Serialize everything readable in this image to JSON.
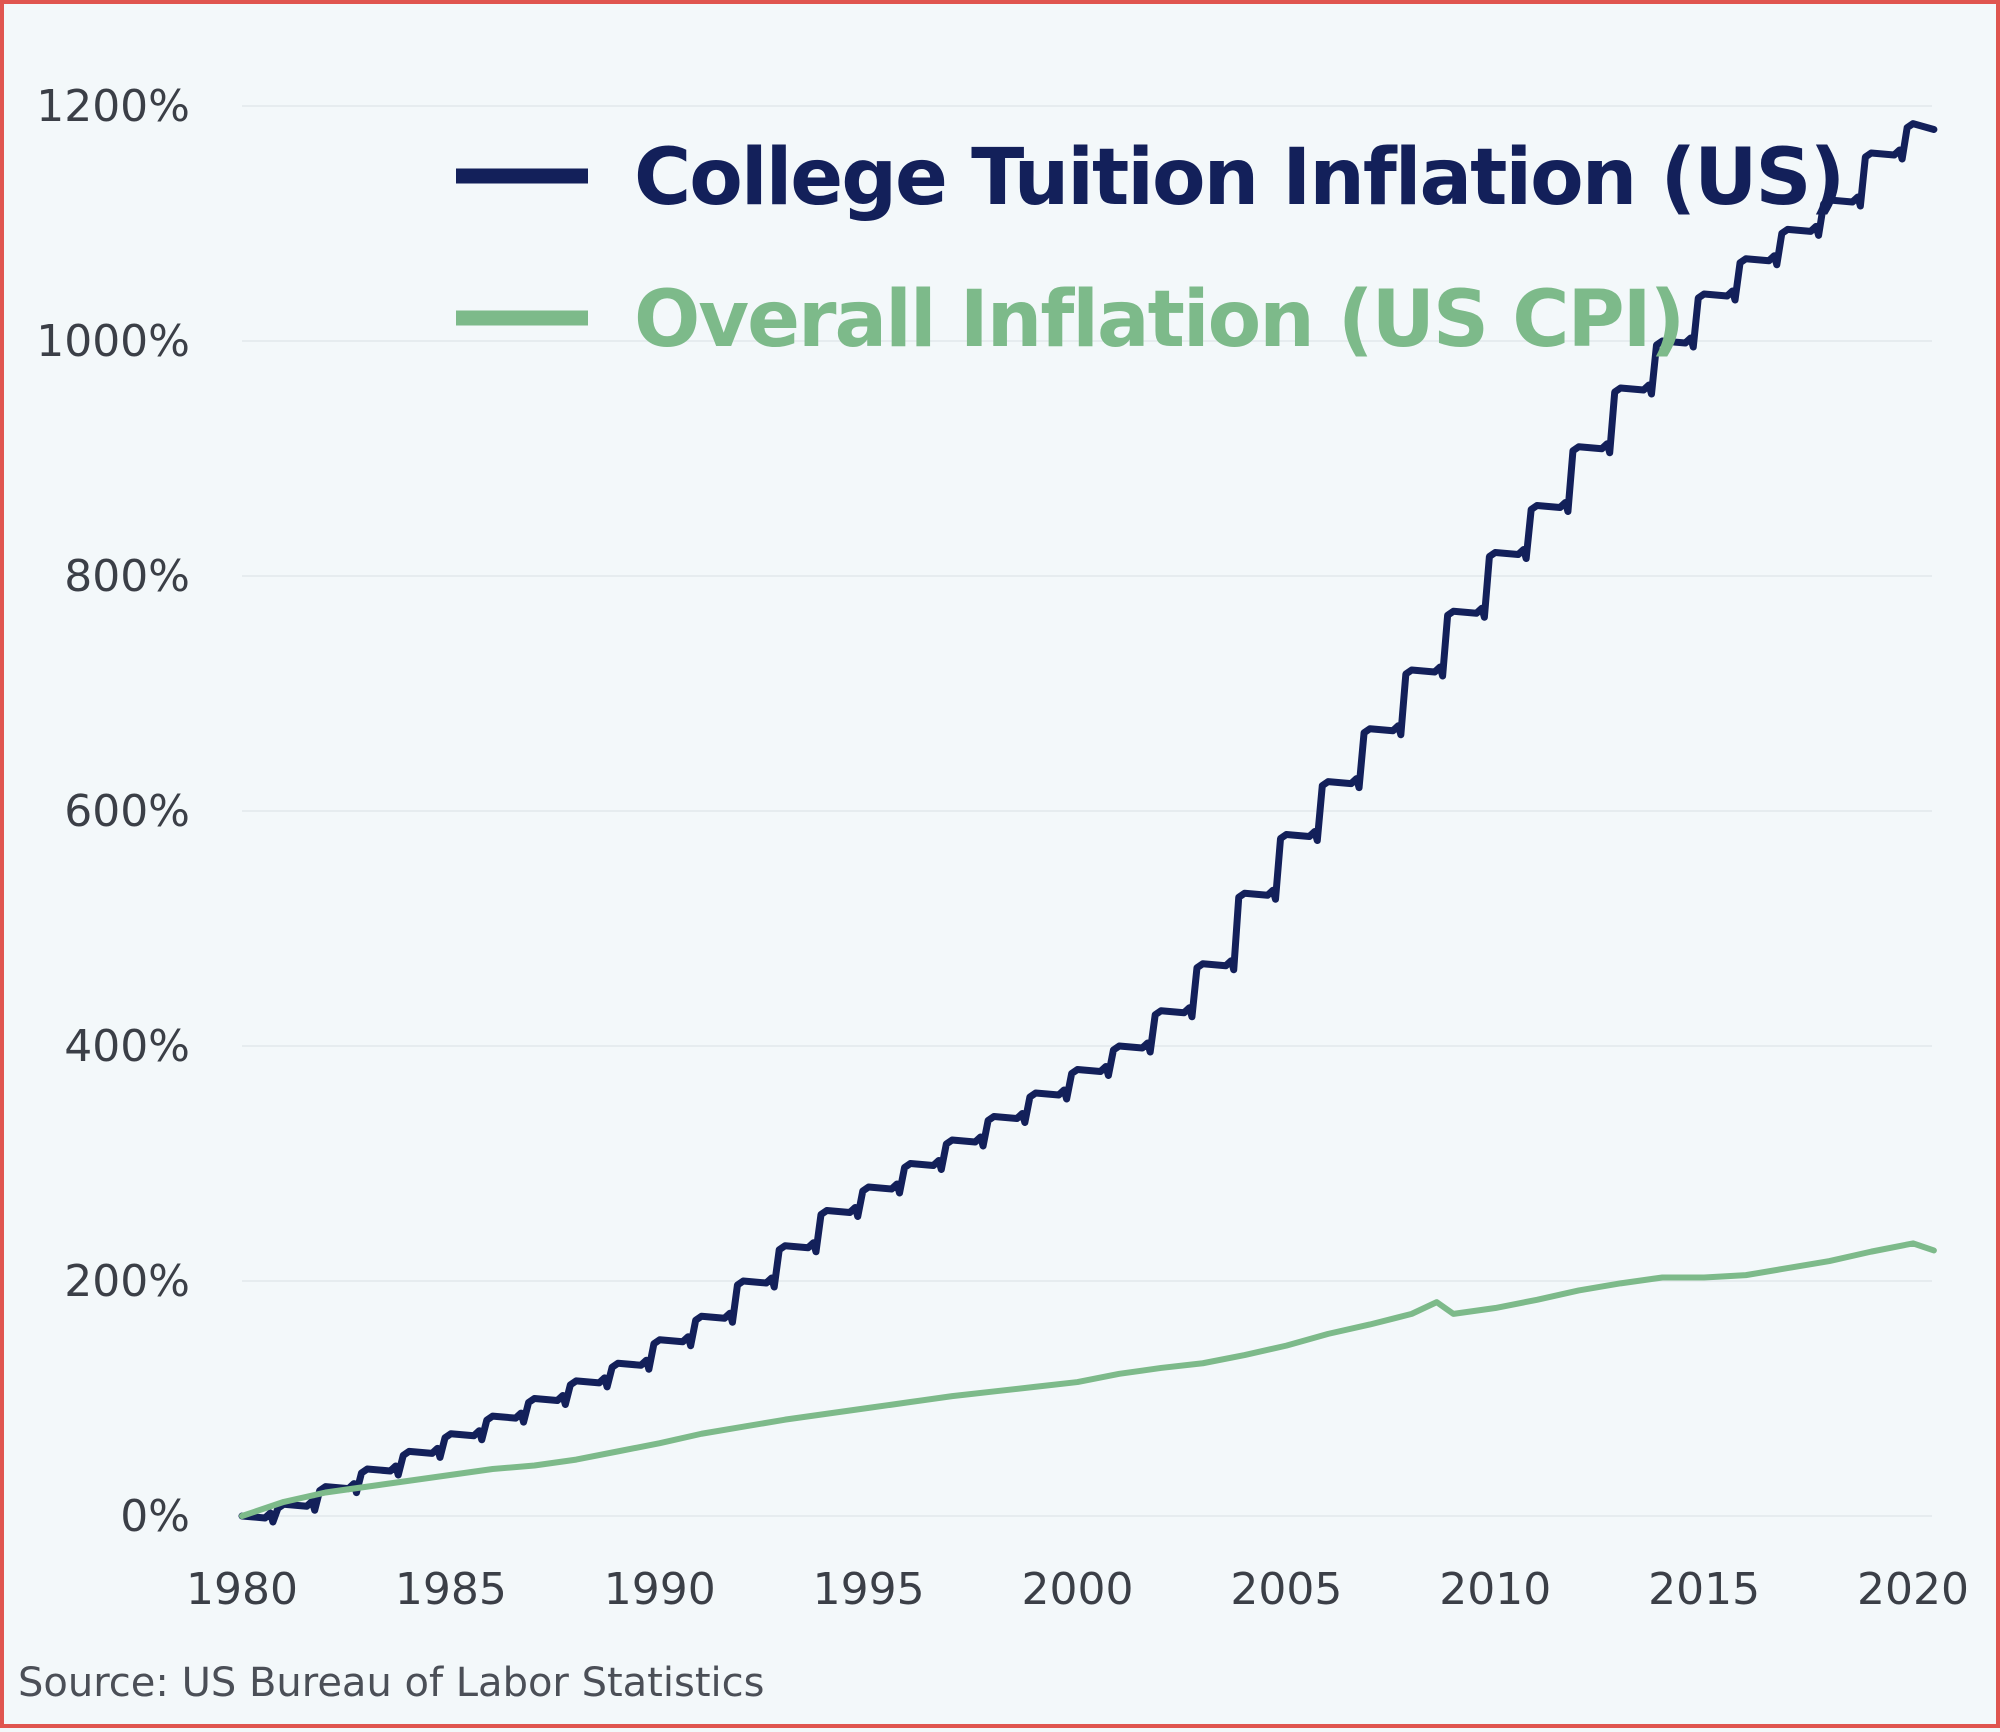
{
  "chart_data": {
    "type": "line",
    "title": "",
    "xlabel": "",
    "ylabel": "",
    "xlim": [
      1980,
      2021
    ],
    "ylim": [
      0,
      1200
    ],
    "grid": true,
    "x_ticks": [
      {
        "value": 1980,
        "label": "1980"
      },
      {
        "value": 1985,
        "label": "1985"
      },
      {
        "value": 1990,
        "label": "1990"
      },
      {
        "value": 1995,
        "label": "1995"
      },
      {
        "value": 2000,
        "label": "2000"
      },
      {
        "value": 2005,
        "label": "2005"
      },
      {
        "value": 2010,
        "label": "2010"
      },
      {
        "value": 2015,
        "label": "2015"
      },
      {
        "value": 2020,
        "label": "2020"
      }
    ],
    "y_ticks": [
      {
        "value": 0,
        "label": "0%"
      },
      {
        "value": 200,
        "label": "200%"
      },
      {
        "value": 400,
        "label": "400%"
      },
      {
        "value": 600,
        "label": "600%"
      },
      {
        "value": 800,
        "label": "800%"
      },
      {
        "value": 1000,
        "label": "1000%"
      },
      {
        "value": 1200,
        "label": "1200%"
      }
    ],
    "legend_position": "top-left",
    "source": "Source: US Bureau of Labor Statistics",
    "series": [
      {
        "name": "College Tuition Inflation (US)",
        "color": "#13205a",
        "stepped": true,
        "x": [
          1980,
          1981,
          1982,
          1983,
          1984,
          1985,
          1986,
          1987,
          1988,
          1989,
          1990,
          1991,
          1992,
          1993,
          1994,
          1995,
          1996,
          1997,
          1998,
          1999,
          2000,
          2001,
          2002,
          2003,
          2004,
          2005,
          2006,
          2007,
          2008,
          2009,
          2010,
          2011,
          2012,
          2013,
          2014,
          2015,
          2016,
          2017,
          2018,
          2019,
          2020,
          2020.5
        ],
        "values": [
          0,
          10,
          25,
          40,
          55,
          70,
          85,
          100,
          115,
          130,
          150,
          170,
          200,
          230,
          260,
          280,
          300,
          320,
          340,
          360,
          380,
          400,
          430,
          470,
          530,
          580,
          625,
          670,
          720,
          770,
          820,
          860,
          910,
          960,
          1000,
          1040,
          1070,
          1095,
          1120,
          1160,
          1185,
          1180
        ]
      },
      {
        "name": "Overall Inflation (US CPI)",
        "color": "#7dba8a",
        "stepped": false,
        "x": [
          1980,
          1981,
          1982,
          1983,
          1984,
          1985,
          1986,
          1987,
          1988,
          1989,
          1990,
          1991,
          1992,
          1993,
          1994,
          1995,
          1996,
          1997,
          1998,
          1999,
          2000,
          2001,
          2002,
          2003,
          2004,
          2005,
          2006,
          2007,
          2008,
          2008.6,
          2009,
          2010,
          2011,
          2012,
          2013,
          2014,
          2015,
          2016,
          2017,
          2018,
          2019,
          2020,
          2020.5
        ],
        "values": [
          0,
          12,
          20,
          25,
          30,
          35,
          40,
          43,
          48,
          55,
          62,
          70,
          76,
          82,
          87,
          92,
          97,
          102,
          106,
          110,
          114,
          121,
          126,
          130,
          137,
          145,
          155,
          163,
          172,
          182,
          172,
          177,
          184,
          192,
          198,
          203,
          203,
          205,
          211,
          217,
          225,
          232,
          226
        ]
      }
    ]
  }
}
